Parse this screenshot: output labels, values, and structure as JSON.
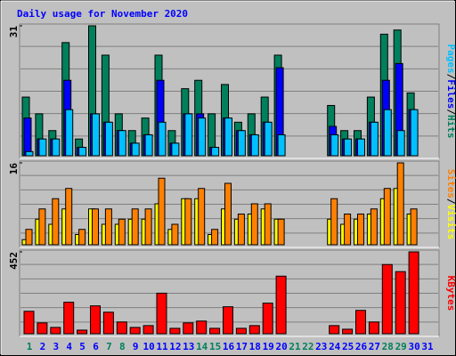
{
  "chart_data": {
    "type": "bar",
    "title": "Daily usage for November 2020",
    "categories": [
      "1",
      "2",
      "3",
      "4",
      "5",
      "6",
      "7",
      "8",
      "9",
      "10",
      "11",
      "12",
      "13",
      "14",
      "15",
      "16",
      "17",
      "18",
      "19",
      "20",
      "21",
      "22",
      "23",
      "24",
      "25",
      "26",
      "27",
      "28",
      "29",
      "30",
      "31"
    ],
    "weekends": [
      "1",
      "7",
      "8",
      "14",
      "15",
      "21",
      "22",
      "28",
      "29"
    ],
    "weekday_color": "#00805c",
    "weekend_color": "#00805c",
    "day_color": "#0000ff",
    "label_separator": "/",
    "panels": [
      {
        "ylim": [
          0,
          31
        ],
        "yticks": [
          31
        ],
        "series": [
          {
            "name": "Hits",
            "color": "#00805c",
            "values": [
              14,
              10,
              6,
              27,
              4,
              31,
              24,
              10,
              6,
              9,
              24,
              6,
              16,
              18,
              10,
              17,
              8,
              10,
              14,
              24,
              0,
              0,
              0,
              12,
              6,
              6,
              14,
              29,
              30,
              15,
              0
            ]
          },
          {
            "name": "Files",
            "color": "#0000ff",
            "values": [
              9,
              4,
              4,
              18,
              2,
              10,
              8,
              6,
              3,
              5,
              18,
              3,
              10,
              10,
              2,
              9,
              6,
              5,
              8,
              21,
              0,
              0,
              0,
              7,
              4,
              4,
              8,
              18,
              22,
              11,
              0
            ]
          },
          {
            "name": "Pages",
            "color": "#00c0ff",
            "values": [
              1,
              4,
              4,
              11,
              2,
              10,
              8,
              6,
              3,
              5,
              8,
              3,
              10,
              9,
              2,
              9,
              6,
              5,
              8,
              5,
              0,
              0,
              0,
              5,
              4,
              4,
              8,
              11,
              6,
              11,
              0
            ]
          }
        ]
      },
      {
        "ylim": [
          0,
          16
        ],
        "yticks": [
          16
        ],
        "series": [
          {
            "name": "Visits",
            "color": "#ffff00",
            "values": [
              1,
              5,
              4,
              7,
              2,
              7,
              4,
              4,
              5,
              5,
              8,
              3,
              9,
              9,
              2,
              7,
              5,
              6,
              7,
              5,
              0,
              0,
              0,
              5,
              4,
              5,
              6,
              9,
              11,
              6,
              0
            ]
          },
          {
            "name": "Sites",
            "color": "#ff8000",
            "values": [
              3,
              7,
              9,
              11,
              3,
              7,
              7,
              5,
              7,
              7,
              13,
              4,
              9,
              11,
              3,
              12,
              6,
              8,
              8,
              5,
              0,
              0,
              0,
              9,
              6,
              6,
              7,
              11,
              16,
              7,
              0
            ]
          }
        ]
      },
      {
        "ylim": [
          0,
          452
        ],
        "yticks": [
          452
        ],
        "series": [
          {
            "name": "KBytes",
            "color": "#ff0000",
            "values": [
              124,
              60,
              35,
              174,
              20,
              154,
              119,
              65,
              35,
              45,
              224,
              30,
              60,
              70,
              30,
              149,
              30,
              45,
              169,
              318,
              0,
              0,
              0,
              45,
              25,
              129,
              65,
              382,
              343,
              452,
              0
            ]
          }
        ]
      }
    ]
  }
}
